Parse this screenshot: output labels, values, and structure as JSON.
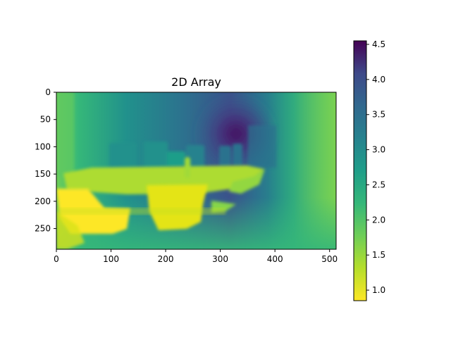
{
  "chart_data": {
    "type": "heatmap",
    "title": "2D Array",
    "xlabel": "",
    "ylabel": "",
    "xlim": [
      0,
      512
    ],
    "ylim": [
      288,
      0
    ],
    "x_ticks": [
      0,
      100,
      200,
      300,
      400,
      500
    ],
    "y_ticks": [
      0,
      50,
      100,
      150,
      200,
      250
    ],
    "colormap": "viridis_r",
    "colorbar": {
      "range": [
        0.85,
        4.55
      ],
      "ticks": [
        "1.0",
        "1.5",
        "2.0",
        "2.5",
        "3.0",
        "3.5",
        "4.0",
        "4.5"
      ]
    },
    "image_description": "depth map of a room: dining table with chairs in center, bright yellow chairs in foreground (low values ~1), dark purple far wall region near top-center (high values ~4.5), green right wall (~1.8)",
    "grid": false,
    "legend": "none"
  }
}
